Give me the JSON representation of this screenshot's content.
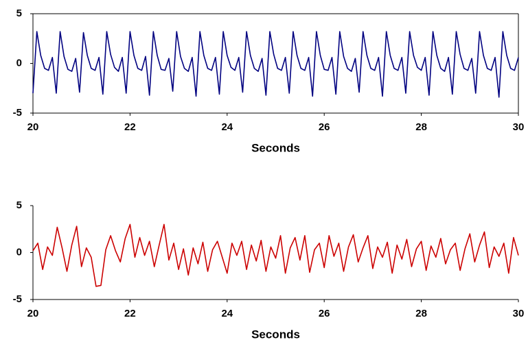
{
  "chart_data": [
    {
      "type": "line",
      "x_label": "Seconds",
      "x": [
        20,
        20.08,
        20.16,
        20.24,
        20.32,
        20.4,
        20.48,
        20.56,
        20.64,
        20.72,
        20.8,
        20.88,
        20.96,
        21.04,
        21.12,
        21.2,
        21.28,
        21.36,
        21.44,
        21.52,
        21.6,
        21.68,
        21.76,
        21.84,
        21.92,
        22,
        22.08,
        22.16,
        22.24,
        22.32,
        22.4,
        22.48,
        22.56,
        22.64,
        22.72,
        22.8,
        22.88,
        22.96,
        23.04,
        23.12,
        23.2,
        23.28,
        23.36,
        23.44,
        23.52,
        23.6,
        23.68,
        23.76,
        23.84,
        23.92,
        24,
        24.08,
        24.16,
        24.24,
        24.32,
        24.4,
        24.48,
        24.56,
        24.64,
        24.72,
        24.8,
        24.88,
        24.96,
        25.04,
        25.12,
        25.2,
        25.28,
        25.36,
        25.44,
        25.52,
        25.6,
        25.68,
        25.76,
        25.84,
        25.92,
        26,
        26.08,
        26.16,
        26.24,
        26.32,
        26.4,
        26.48,
        26.56,
        26.64,
        26.72,
        26.8,
        26.88,
        26.96,
        27.04,
        27.12,
        27.2,
        27.28,
        27.36,
        27.44,
        27.52,
        27.6,
        27.68,
        27.76,
        27.84,
        27.92,
        28,
        28.08,
        28.16,
        28.24,
        28.32,
        28.4,
        28.48,
        28.56,
        28.64,
        28.72,
        28.8,
        28.88,
        28.96,
        29.04,
        29.12,
        29.2,
        29.28,
        29.36,
        29.44,
        29.52,
        29.6,
        29.68,
        29.76,
        29.84,
        29.92,
        30
      ],
      "series": [
        {
          "color": "#000080",
          "values": [
            -3.0,
            3.2,
            0.8,
            -0.5,
            -0.7,
            0.6,
            -3.0,
            3.2,
            0.7,
            -0.6,
            -0.8,
            0.5,
            -2.9,
            3.1,
            0.8,
            -0.5,
            -0.7,
            0.6,
            -3.1,
            3.2,
            0.9,
            -0.4,
            -0.8,
            0.6,
            -3.0,
            3.2,
            0.8,
            -0.5,
            -0.7,
            0.7,
            -3.2,
            3.2,
            0.8,
            -0.6,
            -0.7,
            0.5,
            -2.8,
            3.2,
            0.7,
            -0.5,
            -0.8,
            0.6,
            -3.3,
            3.2,
            0.8,
            -0.5,
            -0.7,
            0.6,
            -3.1,
            3.2,
            0.8,
            -0.4,
            -0.7,
            0.6,
            -2.9,
            3.2,
            0.8,
            -0.5,
            -0.8,
            0.5,
            -3.2,
            3.2,
            0.9,
            -0.5,
            -0.7,
            0.6,
            -3.0,
            3.2,
            0.8,
            -0.5,
            -0.7,
            0.6,
            -3.3,
            3.2,
            0.8,
            -0.6,
            -0.7,
            0.6,
            -3.1,
            3.2,
            0.7,
            -0.5,
            -0.8,
            0.5,
            -2.9,
            3.2,
            0.8,
            -0.5,
            -0.7,
            0.6,
            -3.3,
            3.2,
            0.8,
            -0.5,
            -0.7,
            0.6,
            -3.0,
            3.2,
            0.8,
            -0.4,
            -0.7,
            0.6,
            -3.2,
            3.2,
            0.8,
            -0.5,
            -0.8,
            0.6,
            -3.1,
            3.2,
            0.9,
            -0.5,
            -0.7,
            0.5,
            -3.0,
            3.2,
            0.8,
            -0.5,
            -0.7,
            0.6,
            -3.4,
            3.2,
            0.8,
            -0.5,
            -0.7,
            0.6
          ]
        }
      ],
      "xlim": [
        20,
        30
      ],
      "ylim": [
        -5,
        5
      ],
      "xticks": [
        20,
        22,
        24,
        26,
        28,
        30
      ],
      "yticks": [
        -5,
        0,
        5
      ]
    },
    {
      "type": "line",
      "x_label": "Seconds",
      "x": [
        20,
        20.1,
        20.2,
        20.3,
        20.4,
        20.5,
        20.6,
        20.7,
        20.8,
        20.9,
        21,
        21.1,
        21.2,
        21.3,
        21.4,
        21.5,
        21.6,
        21.7,
        21.8,
        21.9,
        22,
        22.1,
        22.2,
        22.3,
        22.4,
        22.5,
        22.6,
        22.7,
        22.8,
        22.9,
        23,
        23.1,
        23.2,
        23.3,
        23.4,
        23.5,
        23.6,
        23.7,
        23.8,
        23.9,
        24,
        24.1,
        24.2,
        24.3,
        24.4,
        24.5,
        24.6,
        24.7,
        24.8,
        24.9,
        25,
        25.1,
        25.2,
        25.3,
        25.4,
        25.5,
        25.6,
        25.7,
        25.8,
        25.9,
        26,
        26.1,
        26.2,
        26.3,
        26.4,
        26.5,
        26.6,
        26.7,
        26.8,
        26.9,
        27,
        27.1,
        27.2,
        27.3,
        27.4,
        27.5,
        27.6,
        27.7,
        27.8,
        27.9,
        28,
        28.1,
        28.2,
        28.3,
        28.4,
        28.5,
        28.6,
        28.7,
        28.8,
        28.9,
        29,
        29.1,
        29.2,
        29.3,
        29.4,
        29.5,
        29.6,
        29.7,
        29.8,
        29.9,
        30
      ],
      "series": [
        {
          "color": "#cc0000",
          "values": [
            0.2,
            1.0,
            -1.8,
            0.6,
            -0.3,
            2.7,
            0.5,
            -2.0,
            0.8,
            2.8,
            -1.5,
            0.5,
            -0.5,
            -3.6,
            -3.5,
            0.3,
            1.8,
            0.2,
            -1.0,
            1.5,
            3.0,
            -0.5,
            1.6,
            -0.3,
            1.2,
            -1.5,
            0.8,
            3.0,
            -0.8,
            1.0,
            -1.8,
            0.4,
            -2.4,
            0.5,
            -1.2,
            1.1,
            -2.0,
            0.3,
            1.2,
            -0.5,
            -2.2,
            1.0,
            -0.3,
            1.2,
            -1.8,
            0.8,
            -0.9,
            1.3,
            -2.0,
            0.6,
            -0.6,
            1.8,
            -2.2,
            0.5,
            1.6,
            -0.8,
            1.8,
            -2.1,
            0.3,
            1.0,
            -1.6,
            1.8,
            -0.4,
            1.0,
            -2.0,
            0.6,
            1.9,
            -1.0,
            0.5,
            1.8,
            -1.7,
            0.6,
            -0.5,
            1.1,
            -2.2,
            0.8,
            -0.7,
            1.4,
            -1.5,
            0.4,
            1.2,
            -1.9,
            0.7,
            -0.5,
            1.5,
            -1.2,
            0.3,
            1.0,
            -1.9,
            0.4,
            2.0,
            -1.0,
            0.8,
            2.2,
            -1.6,
            0.6,
            -0.4,
            1.0,
            -2.2,
            1.6,
            -0.3
          ]
        }
      ],
      "xlim": [
        20,
        30
      ],
      "ylim": [
        -5,
        5
      ],
      "xticks": [
        20,
        22,
        24,
        26,
        28,
        30
      ],
      "yticks": [
        -5,
        0,
        5
      ]
    }
  ]
}
